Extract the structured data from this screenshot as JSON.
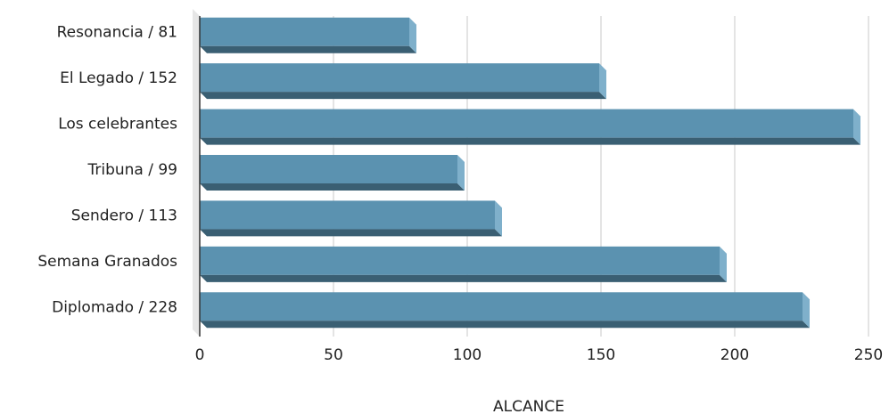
{
  "chart_data": {
    "type": "bar",
    "orientation": "horizontal",
    "categories": [
      "Resonancia / 81",
      "El Legado / 152",
      "Los celebrantes",
      "Tribuna / 99",
      "Sendero / 113",
      "Semana Granados",
      "Diplomado / 228"
    ],
    "values": [
      81,
      152,
      247,
      99,
      113,
      197,
      228
    ],
    "xlabel": "ALCANCE",
    "ylabel": "",
    "xlim": [
      0,
      250
    ],
    "xticks": [
      0,
      50,
      100,
      150,
      200,
      250
    ],
    "grid": true,
    "colors": {
      "bar_front": "#5b92b0",
      "bar_bottom": "#3a5f73",
      "bar_side": "#7fb0cb",
      "grid": "#c8c8c8",
      "axis": "#333333",
      "wall": "#e6e6e6"
    }
  }
}
